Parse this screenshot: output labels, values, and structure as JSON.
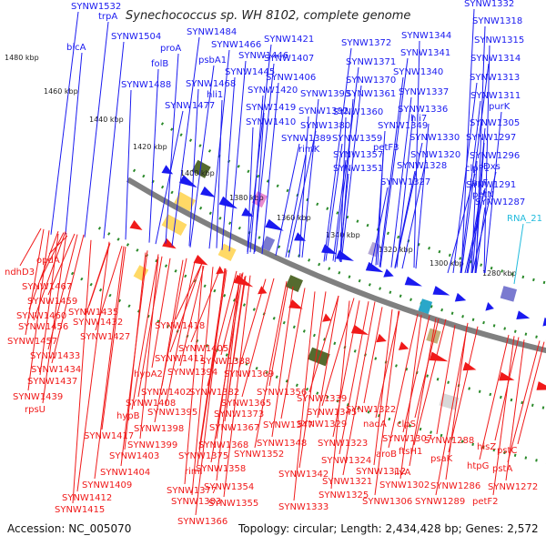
{
  "title": "Synechococcus sp. WH 8102, complete genome",
  "accession": "Accession: NC_005070",
  "summary": "Topology: circular; Length: 2,434,428 bp; Genes: 2,572",
  "colors": {
    "forward": "#1a1af0",
    "reverse": "#f01a1a",
    "rna": "#22bbdd",
    "backbone": "#808080",
    "tick": "#2a8a2a"
  },
  "kbp_ticks": [
    "1480 kbp",
    "1460 kbp",
    "1440 kbp",
    "1420 kbp",
    "1400 kbp",
    "1380 kbp",
    "1360 kbp",
    "1340 kbp",
    "1320 kbp",
    "1300 kbp",
    "1280 kbp"
  ],
  "forward_labels": [
    "SYNW1532",
    "trpA",
    "SYNW1504",
    "bicA",
    "proA",
    "folB",
    "SYNW1488",
    "SYNW1484",
    "psbA1",
    "SYNW1466",
    "SYNW1446",
    "SYNW1445",
    "SYNW1468",
    "hli1",
    "SYNW1477",
    "SYNW1421",
    "SYNW1407",
    "SYNW1406",
    "SYNW1420",
    "SYNW1419",
    "SYNW1410",
    "SYNW1372",
    "SYNW1371",
    "SYNW1370",
    "SYNW1393",
    "SYNW1361",
    "SYNW1392",
    "SYNW1360",
    "SYNW1380",
    "SYNW1389",
    "rimK",
    "SYNW1359",
    "SYNW1357",
    "SYNW1351",
    "SYNW1344",
    "SYNW1341",
    "SYNW1340",
    "SYNW1337",
    "SYNW1336",
    "hli7",
    "SYNW1349",
    "petF3",
    "SYNW1330",
    "SYNW1320",
    "SYNW1328",
    "SYNW1327",
    "SYNW1332",
    "SYNW1318",
    "SYNW1315",
    "SYNW1314",
    "SYNW1313",
    "SYNW1311",
    "purK",
    "SYNW1305",
    "SYNW1297",
    "SYNW1296",
    "clpP1",
    "Dxs",
    "lacF",
    "SYNW1291",
    "petN",
    "SYNW1287"
  ],
  "rna_labels": [
    "RNA_21"
  ],
  "reverse_labels": [
    "opdA",
    "ndhD3",
    "SYNW1467",
    "SYNW1459",
    "SYNW1460",
    "SYNW1456",
    "SYNW1457",
    "SYNW1435",
    "SYNW1432",
    "SYNW1427",
    "SYNW1433",
    "SYNW1434",
    "SYNW1437",
    "SYNW1439",
    "rpsU",
    "SYNW1418",
    "SYNW1405",
    "SYNW1411",
    "hypA2",
    "SYNW1402",
    "SYNW1408",
    "hypB",
    "SYNW1395",
    "SYNW1398",
    "SYNW1399",
    "SYNW1403",
    "SYNW1417",
    "SYNW1404",
    "SYNW1409",
    "SYNW1412",
    "SYNW1415",
    "SYNW1388",
    "SYNW1394",
    "SYNW1369",
    "SYNW1382",
    "SYNW1365",
    "SYNW1373",
    "SYNW1367",
    "SYNW1368",
    "SYNW1375",
    "rimI",
    "SYNW1358",
    "SYNW1377",
    "SYNW1383",
    "SYNW1354",
    "SYNW1355",
    "SYNW1366",
    "SYNW1352",
    "SYNW1356",
    "SYNW1348",
    "SYNW1347",
    "SYNW1342",
    "SYNW1339",
    "SYNW1345",
    "SYNW1322",
    "SYNW1329",
    "nadA",
    "SYNW1323",
    "SYNW1324",
    "SYNW1321",
    "SYNW1325",
    "SYNW1333",
    "clpS",
    "SYNW1307",
    "aroB",
    "ftsH1",
    "SYNW1312",
    "SYNW1302",
    "SYNW1306",
    "ilvA",
    "psaK",
    "SYNW1289",
    "SYNW1288",
    "SYNW1286",
    "hisZ",
    "pstC",
    "htpG",
    "pstA",
    "SYNW1272",
    "petF2"
  ]
}
